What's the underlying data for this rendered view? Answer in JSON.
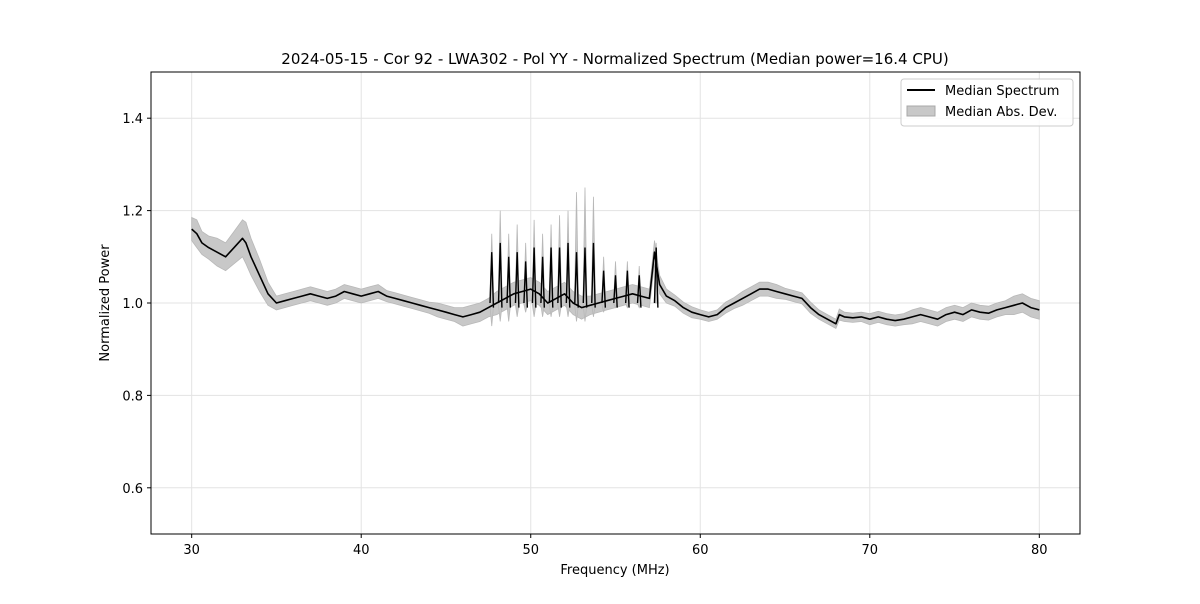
{
  "chart_data": {
    "type": "line",
    "title": "2024-05-15 - Cor 92 - LWA302 - Pol YY - Normalized Spectrum (Median power=16.4 CPU)",
    "xlabel": "Frequency (MHz)",
    "ylabel": "Normalized Power",
    "xlim": [
      27.6,
      82.4
    ],
    "ylim": [
      0.5,
      1.5
    ],
    "grid": true,
    "legend_position": "top-right",
    "x_ticks": [
      30,
      40,
      50,
      60,
      70,
      80
    ],
    "y_ticks": [
      0.6,
      0.8,
      1.0,
      1.2,
      1.4
    ],
    "x_tick_labels": [
      "30",
      "40",
      "50",
      "60",
      "70",
      "80"
    ],
    "y_tick_labels": [
      "0.6",
      "0.8",
      "1.0",
      "1.2",
      "1.4"
    ],
    "legend": [
      {
        "label": "Median Spectrum",
        "style": "line",
        "color": "#000000"
      },
      {
        "label": "Median Abs. Dev.",
        "style": "fill",
        "color": "#c8c8c8"
      }
    ],
    "series": [
      {
        "name": "Median Spectrum",
        "x": [
          30.0,
          30.3,
          30.6,
          31.0,
          31.5,
          32.0,
          32.5,
          33.0,
          33.2,
          33.5,
          34.0,
          34.5,
          35.0,
          35.5,
          36.0,
          36.5,
          37.0,
          37.5,
          38.0,
          38.5,
          39.0,
          39.5,
          40.0,
          40.5,
          41.0,
          41.5,
          42.0,
          42.5,
          43.0,
          43.5,
          44.0,
          44.5,
          45.0,
          45.5,
          46.0,
          46.5,
          47.0,
          47.5,
          48.0,
          48.5,
          49.0,
          49.5,
          50.0,
          50.5,
          51.0,
          51.5,
          52.0,
          52.5,
          53.0,
          53.5,
          54.0,
          54.5,
          55.0,
          55.5,
          56.0,
          56.5,
          57.0,
          57.3,
          57.6,
          58.0,
          58.5,
          59.0,
          59.5,
          60.0,
          60.5,
          61.0,
          61.5,
          62.0,
          62.5,
          63.0,
          63.5,
          64.0,
          64.5,
          65.0,
          65.5,
          66.0,
          66.5,
          67.0,
          67.5,
          68.0,
          68.2,
          68.5,
          69.0,
          69.5,
          70.0,
          70.5,
          71.0,
          71.5,
          72.0,
          72.5,
          73.0,
          73.5,
          74.0,
          74.5,
          75.0,
          75.5,
          76.0,
          76.5,
          77.0,
          77.5,
          78.0,
          78.5,
          79.0,
          79.5,
          80.0
        ],
        "values": [
          1.16,
          1.15,
          1.13,
          1.12,
          1.11,
          1.1,
          1.12,
          1.14,
          1.13,
          1.1,
          1.06,
          1.02,
          1.0,
          1.005,
          1.01,
          1.015,
          1.02,
          1.015,
          1.01,
          1.015,
          1.025,
          1.02,
          1.015,
          1.02,
          1.025,
          1.015,
          1.01,
          1.005,
          1.0,
          0.995,
          0.99,
          0.985,
          0.98,
          0.975,
          0.97,
          0.975,
          0.98,
          0.99,
          1.0,
          1.01,
          1.02,
          1.025,
          1.03,
          1.02,
          1.0,
          1.01,
          1.02,
          1.0,
          0.99,
          0.995,
          1.0,
          1.005,
          1.01,
          1.015,
          1.02,
          1.015,
          1.01,
          1.11,
          1.04,
          1.015,
          1.005,
          0.99,
          0.98,
          0.975,
          0.97,
          0.975,
          0.99,
          1.0,
          1.01,
          1.02,
          1.03,
          1.03,
          1.025,
          1.02,
          1.015,
          1.01,
          0.99,
          0.975,
          0.965,
          0.955,
          0.975,
          0.97,
          0.968,
          0.97,
          0.965,
          0.97,
          0.965,
          0.962,
          0.965,
          0.97,
          0.975,
          0.97,
          0.965,
          0.975,
          0.98,
          0.975,
          0.985,
          0.98,
          0.978,
          0.985,
          0.99,
          0.995,
          1.0,
          0.99,
          0.985
        ]
      },
      {
        "name": "Median Abs. Dev.",
        "x": [
          30.0,
          30.3,
          30.6,
          31.0,
          31.5,
          32.0,
          32.5,
          33.0,
          33.2,
          33.5,
          34.0,
          34.5,
          35.0,
          35.5,
          36.0,
          36.5,
          37.0,
          37.5,
          38.0,
          38.5,
          39.0,
          39.5,
          40.0,
          40.5,
          41.0,
          41.5,
          42.0,
          42.5,
          43.0,
          43.5,
          44.0,
          44.5,
          45.0,
          45.5,
          46.0,
          46.5,
          47.0,
          47.5,
          48.0,
          48.5,
          49.0,
          49.5,
          50.0,
          50.5,
          51.0,
          51.5,
          52.0,
          52.5,
          53.0,
          53.5,
          54.0,
          54.5,
          55.0,
          55.5,
          56.0,
          56.5,
          57.0,
          57.3,
          57.6,
          58.0,
          58.5,
          59.0,
          59.5,
          60.0,
          60.5,
          61.0,
          61.5,
          62.0,
          62.5,
          63.0,
          63.5,
          64.0,
          64.5,
          65.0,
          65.5,
          66.0,
          66.5,
          67.0,
          67.5,
          68.0,
          68.2,
          68.5,
          69.0,
          69.5,
          70.0,
          70.5,
          71.0,
          71.5,
          72.0,
          72.5,
          73.0,
          73.5,
          74.0,
          74.5,
          75.0,
          75.5,
          76.0,
          76.5,
          77.0,
          77.5,
          78.0,
          78.5,
          79.0,
          79.5,
          80.0
        ],
        "values": [
          0.025,
          0.03,
          0.025,
          0.025,
          0.03,
          0.03,
          0.035,
          0.04,
          0.045,
          0.04,
          0.035,
          0.025,
          0.015,
          0.015,
          0.015,
          0.015,
          0.015,
          0.015,
          0.015,
          0.015,
          0.015,
          0.015,
          0.015,
          0.015,
          0.015,
          0.012,
          0.012,
          0.012,
          0.012,
          0.012,
          0.012,
          0.015,
          0.015,
          0.015,
          0.02,
          0.02,
          0.02,
          0.02,
          0.025,
          0.025,
          0.025,
          0.025,
          0.025,
          0.025,
          0.025,
          0.025,
          0.025,
          0.025,
          0.025,
          0.02,
          0.02,
          0.02,
          0.02,
          0.02,
          0.02,
          0.02,
          0.02,
          0.025,
          0.02,
          0.015,
          0.012,
          0.012,
          0.012,
          0.01,
          0.01,
          0.01,
          0.012,
          0.012,
          0.015,
          0.015,
          0.015,
          0.015,
          0.015,
          0.012,
          0.012,
          0.012,
          0.012,
          0.01,
          0.01,
          0.01,
          0.012,
          0.01,
          0.01,
          0.01,
          0.012,
          0.012,
          0.012,
          0.012,
          0.012,
          0.015,
          0.015,
          0.015,
          0.015,
          0.015,
          0.015,
          0.015,
          0.015,
          0.015,
          0.015,
          0.015,
          0.015,
          0.02,
          0.02,
          0.02,
          0.02
        ]
      }
    ],
    "spikes": [
      {
        "x": 47.7,
        "value": 1.11,
        "upper": 1.15,
        "lower": 0.95
      },
      {
        "x": 48.2,
        "value": 1.13,
        "upper": 1.2,
        "lower": 0.96
      },
      {
        "x": 48.7,
        "value": 1.1,
        "upper": 1.15,
        "lower": 0.96
      },
      {
        "x": 49.2,
        "value": 1.11,
        "upper": 1.17,
        "lower": 0.97
      },
      {
        "x": 49.7,
        "value": 1.09,
        "upper": 1.13,
        "lower": 0.98
      },
      {
        "x": 50.2,
        "value": 1.12,
        "upper": 1.18,
        "lower": 0.97
      },
      {
        "x": 50.7,
        "value": 1.1,
        "upper": 1.15,
        "lower": 0.97
      },
      {
        "x": 51.2,
        "value": 1.12,
        "upper": 1.17,
        "lower": 0.97
      },
      {
        "x": 51.7,
        "value": 1.12,
        "upper": 1.19,
        "lower": 0.97
      },
      {
        "x": 52.2,
        "value": 1.13,
        "upper": 1.2,
        "lower": 0.97
      },
      {
        "x": 52.7,
        "value": 1.11,
        "upper": 1.24,
        "lower": 0.96
      },
      {
        "x": 53.2,
        "value": 1.12,
        "upper": 1.25,
        "lower": 0.96
      },
      {
        "x": 53.7,
        "value": 1.13,
        "upper": 1.23,
        "lower": 0.97
      },
      {
        "x": 54.3,
        "value": 1.07,
        "upper": 1.1,
        "lower": 0.98
      },
      {
        "x": 55.0,
        "value": 1.06,
        "upper": 1.09,
        "lower": 0.99
      },
      {
        "x": 55.7,
        "value": 1.07,
        "upper": 1.09,
        "lower": 0.99
      },
      {
        "x": 56.4,
        "value": 1.06,
        "upper": 1.08,
        "lower": 0.99
      },
      {
        "x": 57.4,
        "value": 1.12,
        "upper": 1.13,
        "lower": 1.0
      }
    ]
  }
}
